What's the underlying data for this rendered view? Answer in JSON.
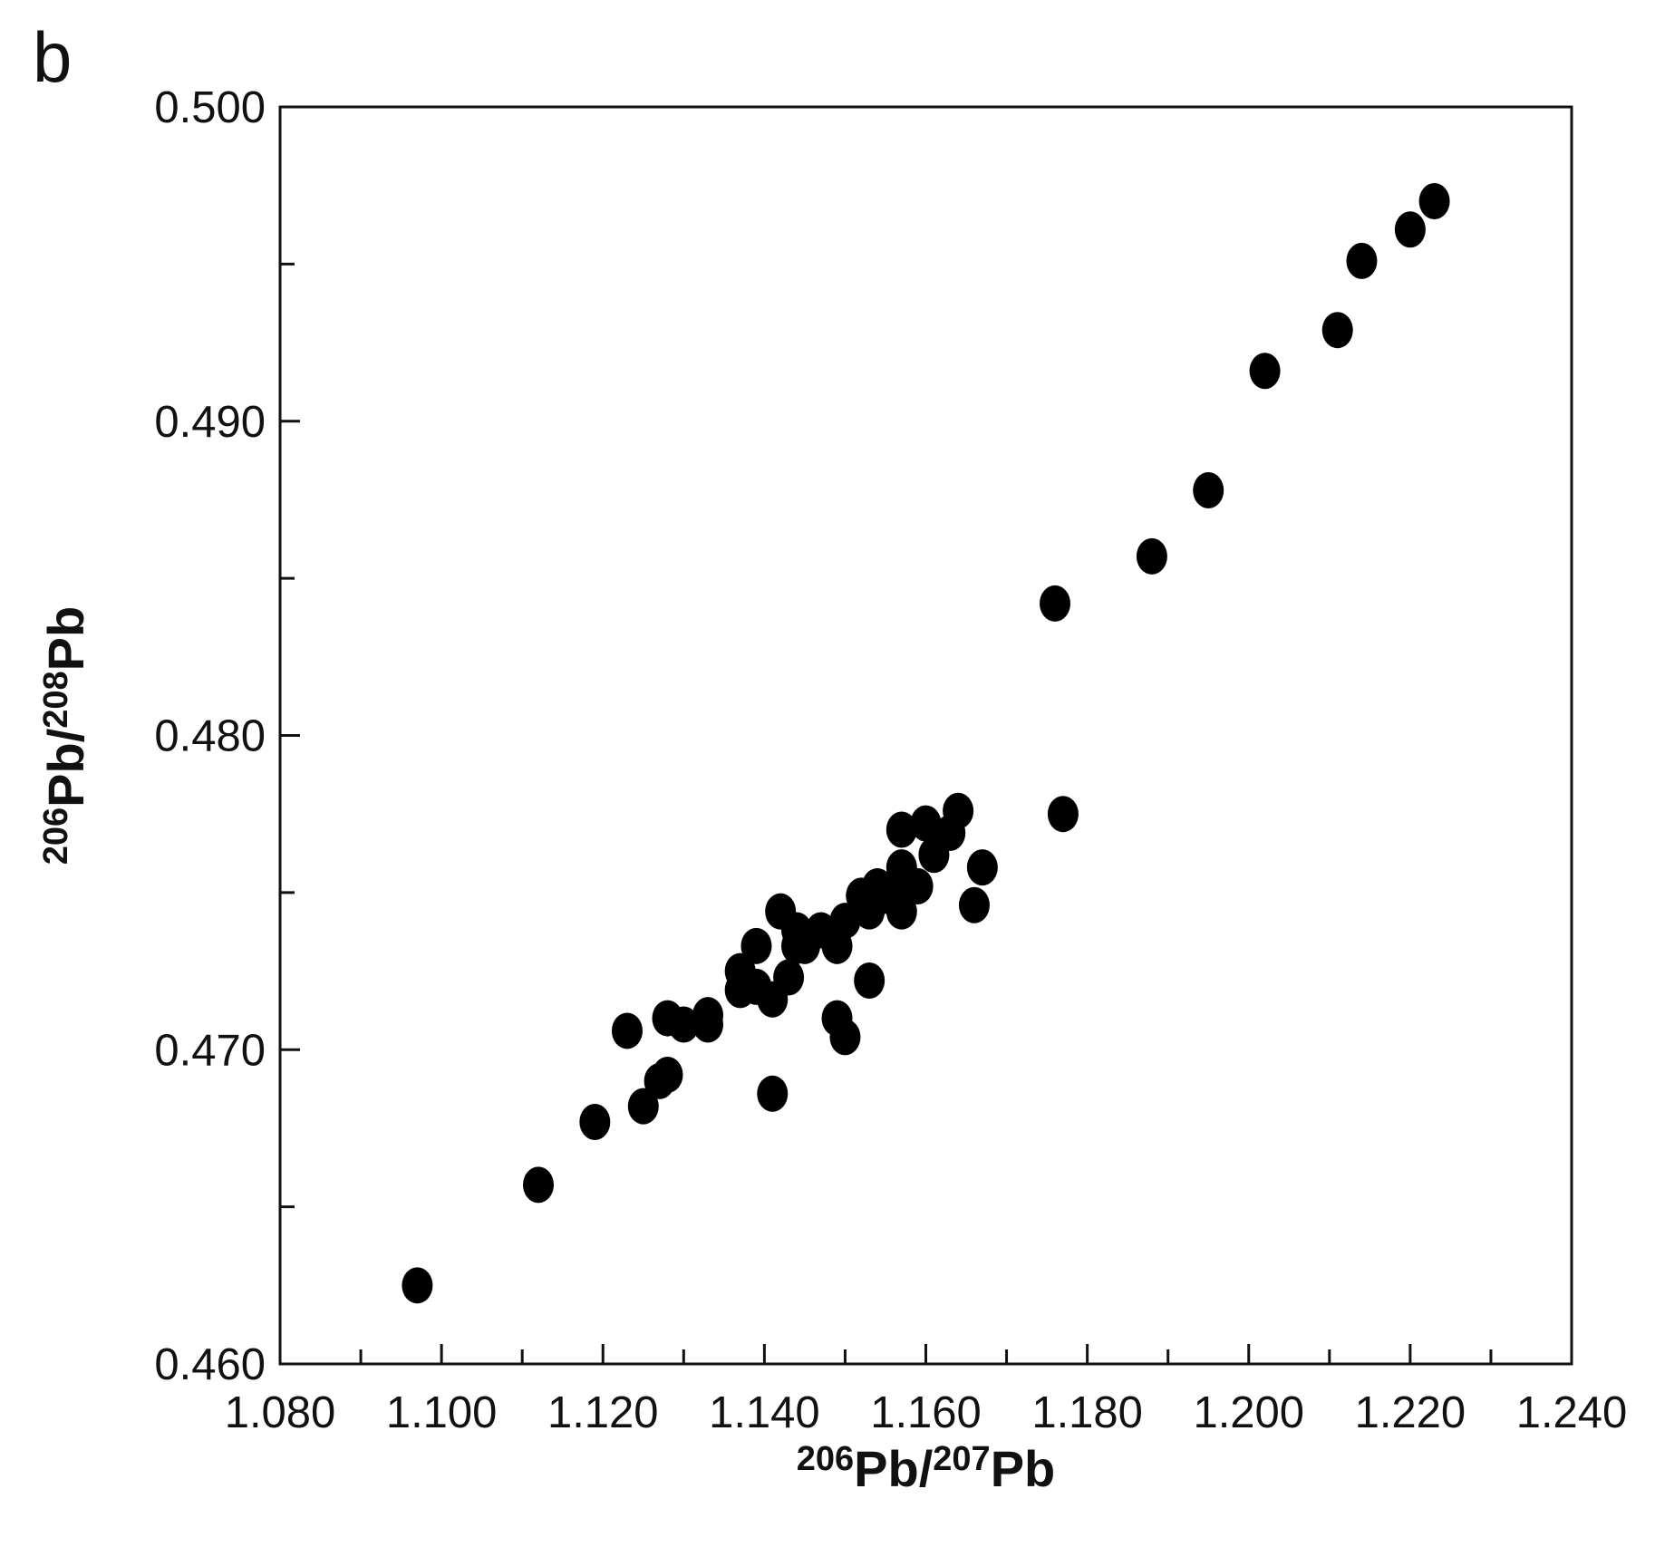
{
  "chart_data": {
    "type": "scatter",
    "panel_label": "b",
    "x_label_parts": [
      "206",
      "Pb/",
      "207",
      "Pb"
    ],
    "y_label_parts": [
      "206",
      "Pb/",
      "208",
      "Pb"
    ],
    "color": "#000000",
    "xlim": [
      1.08,
      1.24
    ],
    "ylim": [
      0.46,
      0.5
    ],
    "xticks": [
      {
        "value": 1.08,
        "label": "1.080"
      },
      {
        "value": 1.1,
        "label": "1.100"
      },
      {
        "value": 1.12,
        "label": "1.120"
      },
      {
        "value": 1.14,
        "label": "1.140"
      },
      {
        "value": 1.16,
        "label": "1.160"
      },
      {
        "value": 1.18,
        "label": "1.180"
      },
      {
        "value": 1.2,
        "label": "1.200"
      },
      {
        "value": 1.22,
        "label": "1.220"
      },
      {
        "value": 1.24,
        "label": "1.240"
      }
    ],
    "xminor_ticks": [
      1.09,
      1.11,
      1.13,
      1.15,
      1.17,
      1.19,
      1.21,
      1.23
    ],
    "yticks": [
      {
        "value": 0.46,
        "label": "0.460"
      },
      {
        "value": 0.47,
        "label": "0.470"
      },
      {
        "value": 0.48,
        "label": "0.480"
      },
      {
        "value": 0.49,
        "label": "0.490"
      },
      {
        "value": 0.5,
        "label": "0.500"
      }
    ],
    "yminor_ticks": [
      0.465,
      0.475,
      0.485,
      0.495
    ],
    "x": [
      1.097,
      1.112,
      1.119,
      1.123,
      1.125,
      1.127,
      1.128,
      1.128,
      1.13,
      1.133,
      1.133,
      1.137,
      1.137,
      1.139,
      1.139,
      1.141,
      1.141,
      1.142,
      1.143,
      1.144,
      1.144,
      1.145,
      1.147,
      1.149,
      1.149,
      1.15,
      1.15,
      1.152,
      1.153,
      1.153,
      1.154,
      1.155,
      1.157,
      1.157,
      1.157,
      1.157,
      1.159,
      1.16,
      1.161,
      1.163,
      1.164,
      1.166,
      1.167,
      1.176,
      1.177,
      1.188,
      1.195,
      1.202,
      1.211,
      1.214,
      1.22,
      1.223
    ],
    "y": [
      0.4625,
      0.4657,
      0.4677,
      0.4706,
      0.4682,
      0.469,
      0.4692,
      0.471,
      0.4708,
      0.4711,
      0.4708,
      0.4725,
      0.4719,
      0.4733,
      0.472,
      0.4716,
      0.4686,
      0.4744,
      0.4723,
      0.4733,
      0.4738,
      0.4733,
      0.4738,
      0.4733,
      0.471,
      0.4704,
      0.4741,
      0.4749,
      0.4744,
      0.4722,
      0.4752,
      0.4749,
      0.4755,
      0.4744,
      0.4758,
      0.477,
      0.4752,
      0.4772,
      0.4762,
      0.4769,
      0.4776,
      0.4746,
      0.4758,
      0.4842,
      0.4775,
      0.4857,
      0.4878,
      0.4916,
      0.4929,
      0.4951,
      0.4961,
      0.497
    ]
  }
}
